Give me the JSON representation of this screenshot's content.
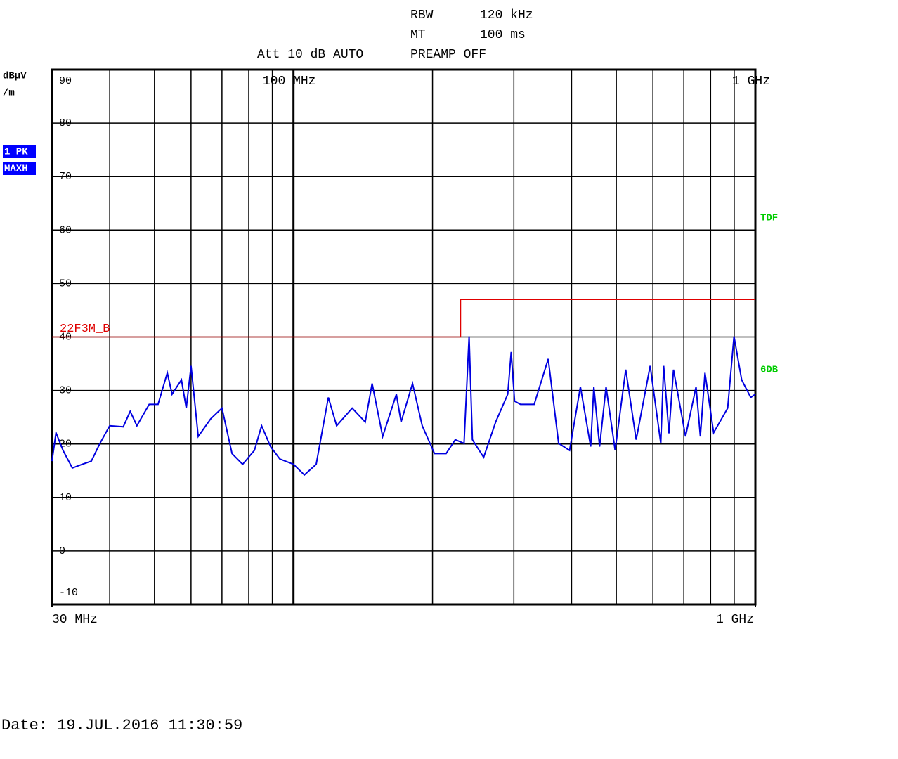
{
  "chart_data": {
    "type": "line",
    "header": [
      "RBW",
      "120 kHz",
      "MT",
      "100 ms",
      "Att 10 dB AUTO",
      "PREAMP OFF"
    ],
    "ylabel": [
      "dBµV",
      "/m"
    ],
    "trace_mode": [
      "1 PK",
      "MAXH"
    ],
    "side_labels": [
      "TDF",
      "6DB"
    ],
    "date": "Date: 19.JUL.2016  11:30:59",
    "xscale": "log",
    "xlim": [
      30,
      1000
    ],
    "ylim": [
      -10,
      90
    ],
    "yticks": [
      90,
      80,
      70,
      60,
      50,
      40,
      30,
      20,
      10,
      0,
      -10
    ],
    "xticks": [
      {
        "value": 30,
        "label": "30 MHz"
      },
      {
        "value": 1000,
        "label": "1 GHz"
      }
    ],
    "xticks_top": [
      {
        "value": 100,
        "label": "100 MHz"
      },
      {
        "value": 1000,
        "label": "1 GHz"
      }
    ],
    "xgrid": [
      40,
      50,
      60,
      70,
      80,
      90,
      200,
      300,
      400,
      500,
      600,
      700,
      800,
      900
    ],
    "grid": true,
    "series": [
      {
        "name": "Trace 1",
        "color": "#0000e0",
        "x": [
          30,
          30.6,
          31.7,
          33.2,
          34.9,
          36.5,
          38.1,
          40,
          42.8,
          44.3,
          45.8,
          48.7,
          50.9,
          53.3,
          54.6,
          57.2,
          58.6,
          60,
          62.2,
          66.2,
          70,
          73.6,
          77.6,
          82.3,
          85.3,
          89.2,
          93.4,
          100,
          105.6,
          112,
          119,
          124,
          134,
          143,
          148,
          156,
          167,
          171,
          181,
          190,
          202,
          214,
          224,
          234,
          240,
          244,
          258,
          274,
          291,
          296,
          301,
          310,
          332,
          356,
          375,
          396,
          418,
          440,
          447,
          460,
          475,
          497,
          524,
          552,
          592,
          624,
          633,
          650,
          665,
          706,
          744,
          760,
          778,
          812,
          871,
          899,
          934,
          977,
          1000
        ],
        "values": [
          16.8,
          22.1,
          18.8,
          15.5,
          16.2,
          16.8,
          20.1,
          23.4,
          23.2,
          26.1,
          23.4,
          27.4,
          27.4,
          33.3,
          29.3,
          32.0,
          26.7,
          34.6,
          21.4,
          24.7,
          26.7,
          18.2,
          16.2,
          18.8,
          23.4,
          19.5,
          17.2,
          16.2,
          14.2,
          16.2,
          28.7,
          23.4,
          26.7,
          24.1,
          31.3,
          21.4,
          29.3,
          24.1,
          31.3,
          23.4,
          18.2,
          18.2,
          20.8,
          20.1,
          40.1,
          20.8,
          17.5,
          24.1,
          29.3,
          37.2,
          28.0,
          27.4,
          27.4,
          35.9,
          20.1,
          18.8,
          30.7,
          19.5,
          30.7,
          19.5,
          30.7,
          18.8,
          33.9,
          20.8,
          34.6,
          20.1,
          34.6,
          22.0,
          33.9,
          21.4,
          30.7,
          21.4,
          33.3,
          22.1,
          26.7,
          40.1,
          32.0,
          28.7,
          29.3
        ]
      },
      {
        "name": "22F3M_B",
        "color": "#e00000",
        "x": [
          30,
          230,
          230,
          1000
        ],
        "values": [
          40,
          40,
          47,
          47
        ]
      }
    ]
  }
}
